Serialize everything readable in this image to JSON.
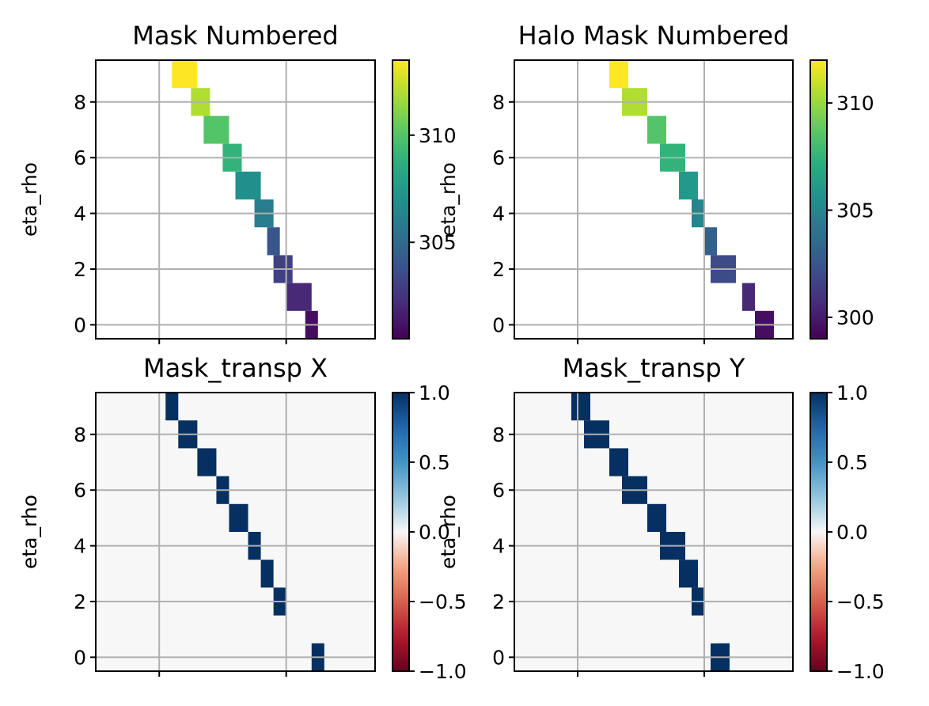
{
  "chart_data": [
    {
      "type": "heatmap",
      "title": "Mask Numbered",
      "ylabel": "eta_rho",
      "yticks": [
        "0",
        "2",
        "4",
        "6",
        "8"
      ],
      "ylim": [
        -0.5,
        9.5
      ],
      "colormap": "viridis",
      "colorbar_range": [
        300.5,
        313.5
      ],
      "colorbar_ticks": [
        "305",
        "310"
      ],
      "grid": true,
      "cells": [
        {
          "eta": 0,
          "xi_range": [
            0.15,
            0.25
          ],
          "value": 301
        },
        {
          "eta": 1,
          "xi_range": [
            0.0,
            0.2
          ],
          "value": 302
        },
        {
          "eta": 2,
          "xi_range": [
            -0.1,
            0.05
          ],
          "value": 303
        },
        {
          "eta": 3,
          "xi_range": [
            -0.15,
            -0.05
          ],
          "value": 304
        },
        {
          "eta": 4,
          "xi_range": [
            -0.25,
            -0.1
          ],
          "value": 306
        },
        {
          "eta": 5,
          "xi_range": [
            -0.4,
            -0.2
          ],
          "value": 307
        },
        {
          "eta": 6,
          "xi_range": [
            -0.5,
            -0.35
          ],
          "value": 309
        },
        {
          "eta": 7,
          "xi_range": [
            -0.65,
            -0.45
          ],
          "value": 310
        },
        {
          "eta": 8,
          "xi_range": [
            -0.75,
            -0.6
          ],
          "value": 312
        },
        {
          "eta": 9,
          "xi_range": [
            -0.9,
            -0.7
          ],
          "value": 313.5
        }
      ]
    },
    {
      "type": "heatmap",
      "title": "Halo Mask Numbered",
      "ylabel": "eta_rho",
      "yticks": [
        "0",
        "2",
        "4",
        "6",
        "8"
      ],
      "ylim": [
        -0.5,
        9.5
      ],
      "colormap": "viridis",
      "colorbar_range": [
        299,
        312
      ],
      "colorbar_ticks": [
        "300",
        "305",
        "310"
      ],
      "grid": true,
      "cells": [
        {
          "eta": 0,
          "xi_range": [
            0.4,
            0.55
          ],
          "value": 299.5
        },
        {
          "eta": 1,
          "xi_range": [
            0.3,
            0.4
          ],
          "value": 300.5
        },
        {
          "eta": 2,
          "xi_range": [
            0.05,
            0.25
          ],
          "value": 302
        },
        {
          "eta": 3,
          "xi_range": [
            0.0,
            0.1
          ],
          "value": 303
        },
        {
          "eta": 4,
          "xi_range": [
            -0.1,
            0.0
          ],
          "value": 305
        },
        {
          "eta": 5,
          "xi_range": [
            -0.2,
            -0.05
          ],
          "value": 306
        },
        {
          "eta": 6,
          "xi_range": [
            -0.35,
            -0.15
          ],
          "value": 307.5
        },
        {
          "eta": 7,
          "xi_range": [
            -0.45,
            -0.3
          ],
          "value": 308.5
        },
        {
          "eta": 8,
          "xi_range": [
            -0.65,
            -0.45
          ],
          "value": 310.5
        },
        {
          "eta": 9,
          "xi_range": [
            -0.75,
            -0.6
          ],
          "value": 312
        }
      ]
    },
    {
      "type": "heatmap",
      "title": "Mask_transp X",
      "ylabel": "eta_rho",
      "yticks": [
        "0",
        "2",
        "4",
        "6",
        "8"
      ],
      "ylim": [
        -0.5,
        9.5
      ],
      "colormap": "RdBu",
      "colorbar_range": [
        -1.0,
        1.0
      ],
      "colorbar_ticks": [
        "−1.0",
        "−0.5",
        "0.0",
        "0.5",
        "1.0"
      ],
      "background_value": 0.0,
      "grid": true,
      "cells": [
        {
          "eta": 0,
          "xi_range": [
            0.2,
            0.3
          ],
          "value": 1.0
        },
        {
          "eta": 1,
          "xi_range": [
            0.0,
            0.2
          ],
          "value": 0.0
        },
        {
          "eta": 2,
          "xi_range": [
            -0.1,
            0.0
          ],
          "value": 1.0
        },
        {
          "eta": 3,
          "xi_range": [
            -0.2,
            -0.1
          ],
          "value": 1.0
        },
        {
          "eta": 4,
          "xi_range": [
            -0.3,
            -0.2
          ],
          "value": 1.0
        },
        {
          "eta": 5,
          "xi_range": [
            -0.45,
            -0.3
          ],
          "value": 1.0
        },
        {
          "eta": 6,
          "xi_range": [
            -0.55,
            -0.45
          ],
          "value": 1.0
        },
        {
          "eta": 7,
          "xi_range": [
            -0.7,
            -0.55
          ],
          "value": 1.0
        },
        {
          "eta": 8,
          "xi_range": [
            -0.85,
            -0.7
          ],
          "value": 1.0
        },
        {
          "eta": 9,
          "xi_range": [
            -0.95,
            -0.85
          ],
          "value": 1.0
        }
      ]
    },
    {
      "type": "heatmap",
      "title": "Mask_transp Y",
      "ylabel": "eta_rho",
      "yticks": [
        "0",
        "2",
        "4",
        "6",
        "8"
      ],
      "ylim": [
        -0.5,
        9.5
      ],
      "colormap": "RdBu",
      "colorbar_range": [
        -1.0,
        1.0
      ],
      "colorbar_ticks": [
        "−1.0",
        "−0.5",
        "0.0",
        "0.5",
        "1.0"
      ],
      "background_value": 0.0,
      "grid": true,
      "cells": [
        {
          "eta": 0,
          "xi_range": [
            0.05,
            0.2
          ],
          "value": 1.0
        },
        {
          "eta": 1,
          "xi_range": [
            0.0,
            0.1
          ],
          "value": 0.0
        },
        {
          "eta": 2,
          "xi_range": [
            -0.1,
            0.0
          ],
          "value": 1.0
        },
        {
          "eta": 3,
          "xi_range": [
            -0.2,
            -0.05
          ],
          "value": 1.0
        },
        {
          "eta": 4,
          "xi_range": [
            -0.35,
            -0.15
          ],
          "value": 1.0
        },
        {
          "eta": 5,
          "xi_range": [
            -0.45,
            -0.3
          ],
          "value": 1.0
        },
        {
          "eta": 6,
          "xi_range": [
            -0.65,
            -0.45
          ],
          "value": 1.0
        },
        {
          "eta": 7,
          "xi_range": [
            -0.75,
            -0.6
          ],
          "value": 1.0
        },
        {
          "eta": 8,
          "xi_range": [
            -0.95,
            -0.75
          ],
          "value": 1.0
        },
        {
          "eta": 9,
          "xi_range": [
            -1.05,
            -0.9
          ],
          "value": 1.0
        }
      ]
    }
  ]
}
